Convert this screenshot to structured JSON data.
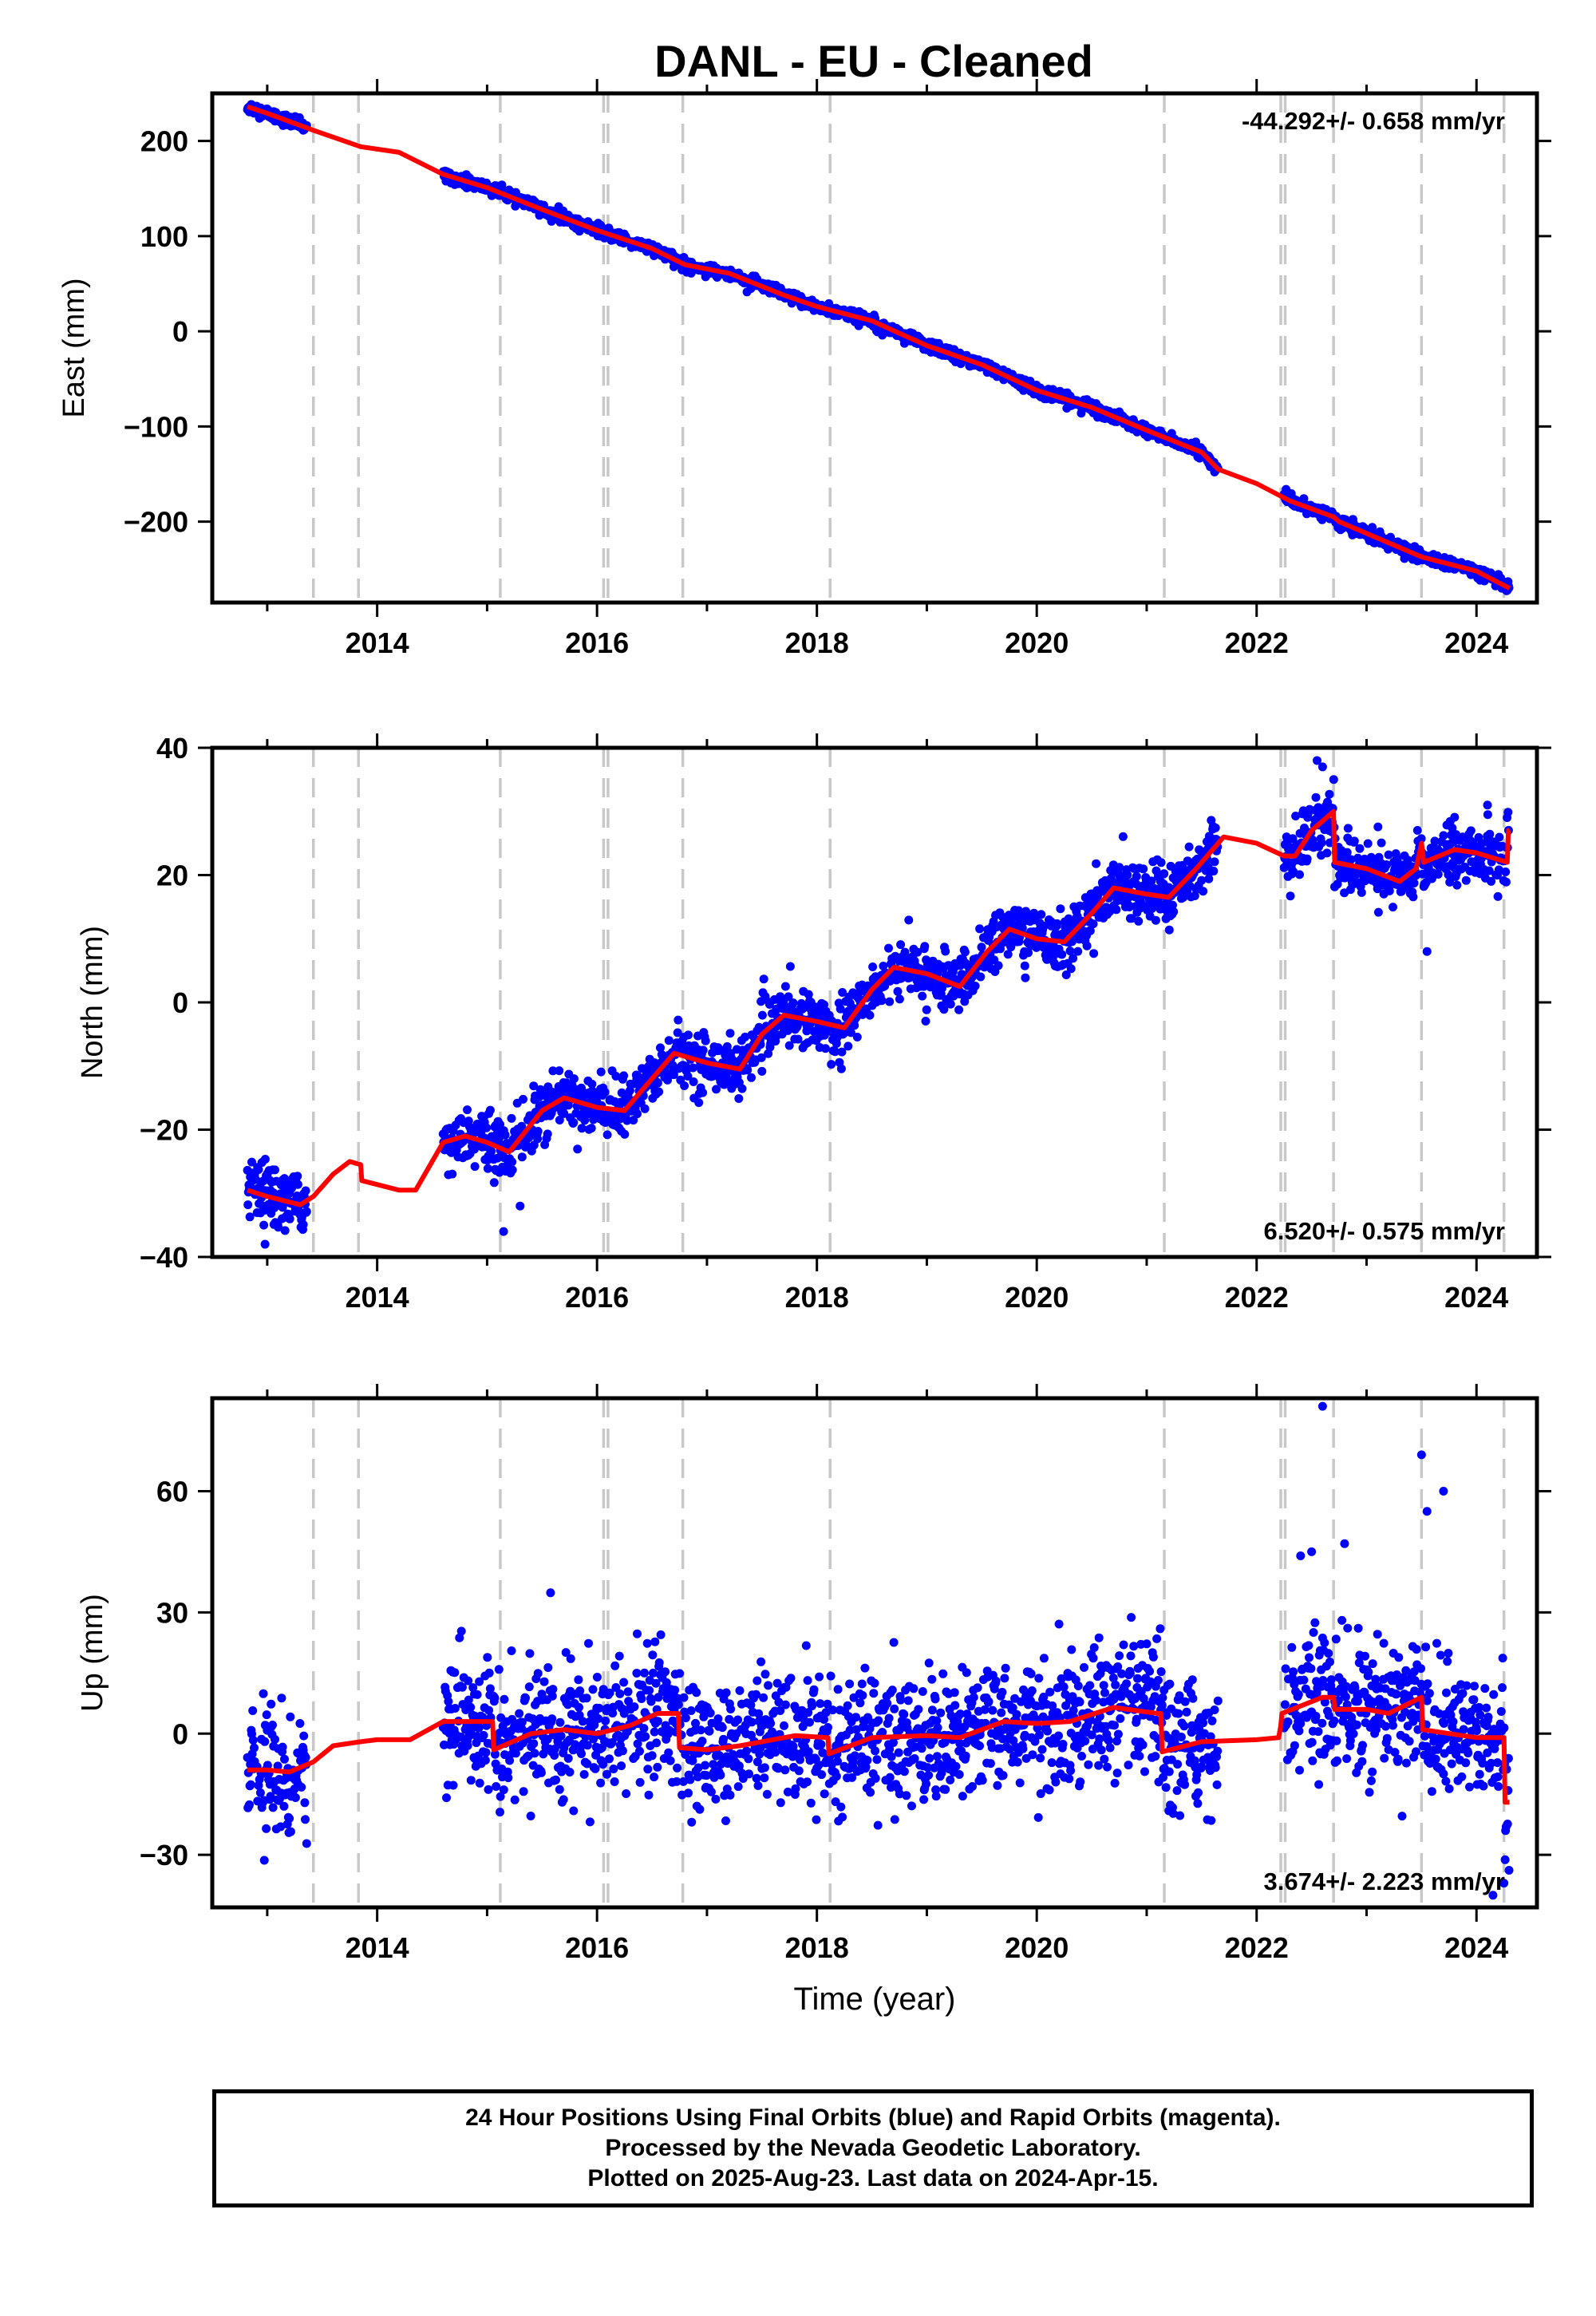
{
  "title": "DANL  - EU - Cleaned",
  "chart_data": [
    {
      "type": "scatter",
      "name": "east",
      "ylabel": "East (mm)",
      "xlabel": "",
      "xlim": [
        2012.5,
        2024.55
      ],
      "ylim": [
        -285,
        250
      ],
      "yticks": [
        -200,
        -100,
        0,
        100,
        200
      ],
      "ytick_labels": [
        "−200",
        "−100",
        "0",
        "100",
        "200"
      ],
      "xticks": [
        2014,
        2016,
        2018,
        2020,
        2022,
        2024
      ],
      "xtick_labels": [
        "2014",
        "2016",
        "2018",
        "2020",
        "2022",
        "2024"
      ],
      "rate_text": "-44.292+/- 0.658 mm/yr",
      "rate_position": "top-right",
      "data_ranges": [
        [
          2012.82,
          2013.36
        ],
        [
          2014.6,
          2021.65
        ],
        [
          2022.25,
          2024.3
        ]
      ],
      "noise": 3,
      "trend": [
        [
          2012.82,
          236
        ],
        [
          2013.0,
          229
        ],
        [
          2013.4,
          212
        ],
        [
          2013.85,
          194
        ],
        [
          2014.2,
          188
        ],
        [
          2014.6,
          165
        ],
        [
          2015.0,
          151
        ],
        [
          2015.5,
          128
        ],
        [
          2016.0,
          106
        ],
        [
          2016.5,
          87
        ],
        [
          2016.8,
          70
        ],
        [
          2017.2,
          61
        ],
        [
          2017.7,
          38
        ],
        [
          2018.0,
          26
        ],
        [
          2018.5,
          11
        ],
        [
          2019.0,
          -15
        ],
        [
          2019.5,
          -35
        ],
        [
          2020.0,
          -62
        ],
        [
          2020.5,
          -80
        ],
        [
          2021.0,
          -104
        ],
        [
          2021.5,
          -127
        ],
        [
          2021.65,
          -145
        ],
        [
          2022.0,
          -160
        ],
        [
          2022.3,
          -178
        ],
        [
          2022.7,
          -195
        ],
        [
          2022.75,
          -200
        ],
        [
          2023.5,
          -237
        ],
        [
          2024.0,
          -252
        ],
        [
          2024.3,
          -270
        ]
      ],
      "offsets": []
    },
    {
      "type": "scatter",
      "name": "north",
      "ylabel": "North (mm)",
      "xlabel": "",
      "xlim": [
        2012.5,
        2024.55
      ],
      "ylim": [
        -40,
        40
      ],
      "yticks": [
        -40,
        -20,
        0,
        20,
        40
      ],
      "ytick_labels": [
        "−40",
        "−20",
        "0",
        "20",
        "40"
      ],
      "xticks": [
        2014,
        2016,
        2018,
        2020,
        2022,
        2024
      ],
      "xtick_labels": [
        "2014",
        "2016",
        "2018",
        "2020",
        "2022",
        "2024"
      ],
      "rate_text": "6.520+/- 0.575 mm/yr",
      "rate_position": "bottom-right",
      "data_ranges": [
        [
          2012.82,
          2013.36
        ],
        [
          2014.6,
          2021.65
        ],
        [
          2022.25,
          2024.3
        ]
      ],
      "noise": 2.2,
      "trend": [
        [
          2012.82,
          -29.5
        ],
        [
          2013.0,
          -30.5
        ],
        [
          2013.3,
          -31.8
        ],
        [
          2013.42,
          -30.5
        ],
        [
          2013.6,
          -27
        ],
        [
          2013.75,
          -25
        ],
        [
          2013.85,
          -25.5
        ],
        [
          2013.86,
          -28
        ],
        [
          2014.2,
          -29.5
        ],
        [
          2014.35,
          -29.5
        ],
        [
          2014.6,
          -22
        ],
        [
          2014.8,
          -21
        ],
        [
          2015.0,
          -22
        ],
        [
          2015.2,
          -23.5
        ],
        [
          2015.5,
          -17
        ],
        [
          2015.7,
          -15
        ],
        [
          2016.0,
          -16.5
        ],
        [
          2016.25,
          -17
        ],
        [
          2016.5,
          -12
        ],
        [
          2016.7,
          -8
        ],
        [
          2017.0,
          -9.5
        ],
        [
          2017.3,
          -10.5
        ],
        [
          2017.5,
          -5
        ],
        [
          2017.7,
          -2
        ],
        [
          2018.0,
          -3
        ],
        [
          2018.25,
          -4
        ],
        [
          2018.5,
          2
        ],
        [
          2018.7,
          5.5
        ],
        [
          2019.0,
          4.5
        ],
        [
          2019.3,
          2.5
        ],
        [
          2019.55,
          8
        ],
        [
          2019.75,
          11.5
        ],
        [
          2020.0,
          10
        ],
        [
          2020.25,
          9.5
        ],
        [
          2020.5,
          14
        ],
        [
          2020.7,
          18
        ],
        [
          2021.0,
          17
        ],
        [
          2021.2,
          16.5
        ],
        [
          2021.45,
          21
        ],
        [
          2021.7,
          26
        ],
        [
          2022.0,
          25
        ],
        [
          2022.25,
          23
        ],
        [
          2022.35,
          23
        ],
        [
          2022.5,
          27
        ],
        [
          2022.7,
          30
        ],
        [
          2022.71,
          22
        ],
        [
          2023.0,
          21
        ],
        [
          2023.3,
          19
        ],
        [
          2023.45,
          21
        ],
        [
          2023.5,
          25
        ],
        [
          2023.52,
          22
        ],
        [
          2023.8,
          24
        ],
        [
          2024.0,
          23.5
        ],
        [
          2024.28,
          22
        ],
        [
          2024.29,
          27
        ],
        [
          2024.3,
          27
        ]
      ],
      "outliers": [
        [
          2012.98,
          -38
        ],
        [
          2015.15,
          -36
        ],
        [
          2015.3,
          -32
        ],
        [
          2022.55,
          38
        ],
        [
          2022.6,
          37
        ],
        [
          2023.55,
          8
        ],
        [
          2024.1,
          31
        ]
      ],
      "offsets": []
    },
    {
      "type": "scatter",
      "name": "up",
      "ylabel": "Up (mm)",
      "xlabel": "Time (year)",
      "xlim": [
        2012.5,
        2024.55
      ],
      "ylim": [
        -43,
        83
      ],
      "yticks": [
        -30,
        0,
        30,
        60
      ],
      "ytick_labels": [
        "−30",
        "0",
        "30",
        "60"
      ],
      "xticks": [
        2014,
        2016,
        2018,
        2020,
        2022,
        2024
      ],
      "xtick_labels": [
        "2014",
        "2016",
        "2018",
        "2020",
        "2022",
        "2024"
      ],
      "rate_text": "3.674+/- 2.223 mm/yr",
      "rate_position": "bottom-right",
      "data_ranges": [
        [
          2012.82,
          2013.36
        ],
        [
          2014.6,
          2021.65
        ],
        [
          2022.25,
          2024.3
        ]
      ],
      "noise": 8,
      "trend": [
        [
          2012.82,
          -9
        ],
        [
          2013.0,
          -9
        ],
        [
          2013.2,
          -9.5
        ],
        [
          2013.42,
          -7
        ],
        [
          2013.6,
          -3
        ],
        [
          2013.85,
          -2
        ],
        [
          2014.0,
          -1.5
        ],
        [
          2014.3,
          -1.5
        ],
        [
          2014.6,
          3
        ],
        [
          2015.0,
          3
        ],
        [
          2015.05,
          3
        ],
        [
          2015.06,
          -4
        ],
        [
          2015.4,
          0
        ],
        [
          2015.7,
          1
        ],
        [
          2016.0,
          0
        ],
        [
          2016.3,
          2
        ],
        [
          2016.55,
          5
        ],
        [
          2016.74,
          5
        ],
        [
          2016.75,
          -3.5
        ],
        [
          2017.0,
          -4
        ],
        [
          2017.3,
          -3
        ],
        [
          2017.8,
          -0.5
        ],
        [
          2018.1,
          -1
        ],
        [
          2018.11,
          -5
        ],
        [
          2018.5,
          -1
        ],
        [
          2019.0,
          -0.5
        ],
        [
          2019.3,
          -1
        ],
        [
          2019.7,
          3
        ],
        [
          2020.0,
          2.5
        ],
        [
          2020.3,
          3
        ],
        [
          2020.7,
          6.5
        ],
        [
          2021.1,
          5
        ],
        [
          2021.13,
          5
        ],
        [
          2021.14,
          -4.5
        ],
        [
          2021.5,
          -2
        ],
        [
          2022.0,
          -1.5
        ],
        [
          2022.2,
          -1
        ],
        [
          2022.22,
          2
        ],
        [
          2022.23,
          5
        ],
        [
          2022.6,
          9
        ],
        [
          2022.7,
          9
        ],
        [
          2022.71,
          6
        ],
        [
          2023.0,
          6
        ],
        [
          2023.2,
          5
        ],
        [
          2023.5,
          9
        ],
        [
          2023.51,
          1
        ],
        [
          2024.0,
          -1
        ],
        [
          2024.25,
          -1
        ],
        [
          2024.26,
          -17
        ],
        [
          2024.3,
          -17
        ]
      ],
      "outliers": [
        [
          2022.6,
          81
        ],
        [
          2023.5,
          69
        ],
        [
          2023.7,
          60
        ],
        [
          2023.55,
          55
        ],
        [
          2022.5,
          45
        ],
        [
          2022.8,
          47
        ],
        [
          2022.4,
          44
        ],
        [
          2024.15,
          -40
        ],
        [
          2024.25,
          -37
        ]
      ],
      "offsets": []
    }
  ],
  "offset_years": [
    2013.42,
    2013.83,
    2015.12,
    2016.06,
    2016.1,
    2016.78,
    2018.12,
    2021.16,
    2022.22,
    2022.26,
    2022.7,
    2023.5,
    2024.25
  ],
  "colors": {
    "data": "#0000ff",
    "model": "#ff0000",
    "offset": "#c8c8c8",
    "axis": "#000000"
  },
  "footer": {
    "line1": "24 Hour Positions Using Final Orbits (blue) and Rapid Orbits (magenta).",
    "line2": "Processed by the Nevada Geodetic Laboratory.",
    "line3": "Plotted on 2025-Aug-23. Last data on 2024-Apr-15."
  }
}
